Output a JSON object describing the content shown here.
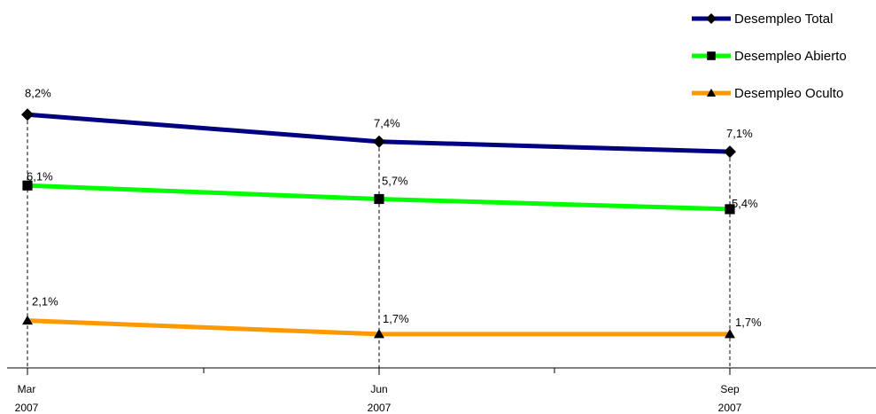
{
  "chart_data": {
    "type": "line",
    "categories": [
      {
        "month": "Mar",
        "year": "2007"
      },
      {
        "month": "Jun",
        "year": "2007"
      },
      {
        "month": "Sep",
        "year": "2007"
      }
    ],
    "series": [
      {
        "name": "Desempleo Total",
        "color": "#000080",
        "marker": "diamond",
        "values": [
          8.2,
          7.4,
          7.1
        ],
        "labels": [
          "8,2%",
          "7,4%",
          "7,1%"
        ]
      },
      {
        "name": "Desempleo Abierto",
        "color": "#00ff00",
        "marker": "square",
        "values": [
          6.1,
          5.7,
          5.4
        ],
        "labels": [
          "6,1%",
          "5,7%",
          "5,4%"
        ]
      },
      {
        "name": "Desempleo Oculto",
        "color": "#ff9900",
        "marker": "triangle",
        "values": [
          2.1,
          1.7,
          1.7
        ],
        "labels": [
          "2,1%",
          "1,7%",
          "1,7%"
        ]
      }
    ],
    "legend_position": "top-right",
    "drop_lines": true,
    "grid": false
  }
}
